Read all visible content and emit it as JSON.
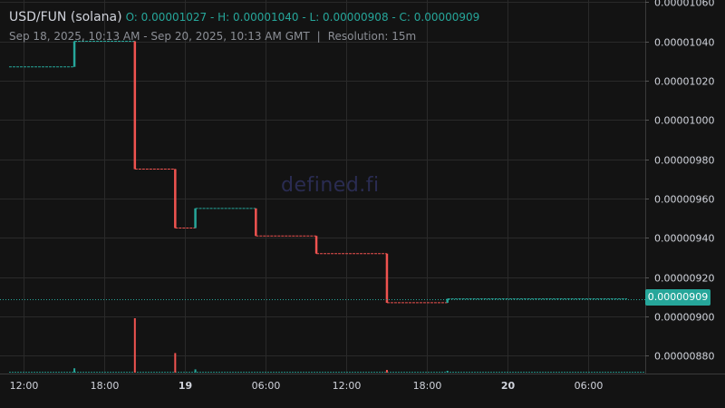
{
  "header": {
    "symbol": "USD/FUN (solana)",
    "ohlc": "O: 0.00001027 - H: 0.00001040 - L: 0.00000908 - C: 0.00000909",
    "range": "Sep 18, 2025, 10:13 AM - Sep 20, 2025, 10:13 AM GMT",
    "separator": "|",
    "resolution": "Resolution: 15m"
  },
  "watermark": "defined.fi",
  "last_price_label": "0.00000909",
  "colors": {
    "background": "#131313",
    "grid": "#2a2a2a",
    "up": "#26a69a",
    "down": "#ef5350",
    "text": "#d1d4dc"
  },
  "chart_data": {
    "type": "line",
    "style": "step",
    "y_axis": {
      "position": "right",
      "ticks": [
        1.06e-05,
        1.04e-05,
        1.02e-05,
        1e-05,
        9.8e-06,
        9.6e-06,
        9.4e-06,
        9.2e-06,
        9e-06,
        8.8e-06
      ],
      "tick_labels": [
        "0.00001060",
        "0.00001040",
        "0.00001020",
        "0.00001000",
        "0.00000980",
        "0.00000960",
        "0.00000940",
        "0.00000920",
        "0.00000900",
        "0.00000880"
      ],
      "range": [
        8.71e-06,
        1.061e-05
      ]
    },
    "x_axis": {
      "range": [
        "2025-09-18T10:13",
        "2025-09-20T10:13"
      ],
      "ticks": [
        {
          "t": "2025-09-18T12:00",
          "label": "12:00",
          "bold": false
        },
        {
          "t": "2025-09-18T18:00",
          "label": "18:00",
          "bold": false
        },
        {
          "t": "2025-09-19T00:00",
          "label": "19",
          "bold": true
        },
        {
          "t": "2025-09-19T06:00",
          "label": "06:00",
          "bold": false
        },
        {
          "t": "2025-09-19T12:00",
          "label": "12:00",
          "bold": false
        },
        {
          "t": "2025-09-19T18:00",
          "label": "18:00",
          "bold": false
        },
        {
          "t": "2025-09-20T00:00",
          "label": "20",
          "bold": true
        },
        {
          "t": "2025-09-20T06:00",
          "label": "06:00",
          "bold": false
        }
      ]
    },
    "series": [
      {
        "points": [
          {
            "t": "2025-09-18T10:13",
            "y": 1.027e-05
          },
          {
            "t": "2025-09-18T15:45",
            "y": 1.04e-05
          },
          {
            "t": "2025-09-18T20:15",
            "y": 9.75e-06
          },
          {
            "t": "2025-09-18T23:15",
            "y": 9.45e-06
          },
          {
            "t": "2025-09-19T00:45",
            "y": 9.55e-06
          },
          {
            "t": "2025-09-19T05:15",
            "y": 9.41e-06
          },
          {
            "t": "2025-09-19T09:45",
            "y": 9.32e-06
          },
          {
            "t": "2025-09-19T15:00",
            "y": 9.07e-06
          },
          {
            "t": "2025-09-19T19:30",
            "y": 9.09e-06
          }
        ]
      }
    ],
    "volume": [
      {
        "t": "2025-09-18T15:45",
        "v": 0.08
      },
      {
        "t": "2025-09-18T20:15",
        "v": 1.0
      },
      {
        "t": "2025-09-18T23:15",
        "v": 0.36
      },
      {
        "t": "2025-09-19T00:45",
        "v": 0.06
      },
      {
        "t": "2025-09-19T15:00",
        "v": 0.05
      },
      {
        "t": "2025-09-19T19:30",
        "v": 0.02
      }
    ],
    "last_price": 9.09e-06,
    "grid": true
  }
}
